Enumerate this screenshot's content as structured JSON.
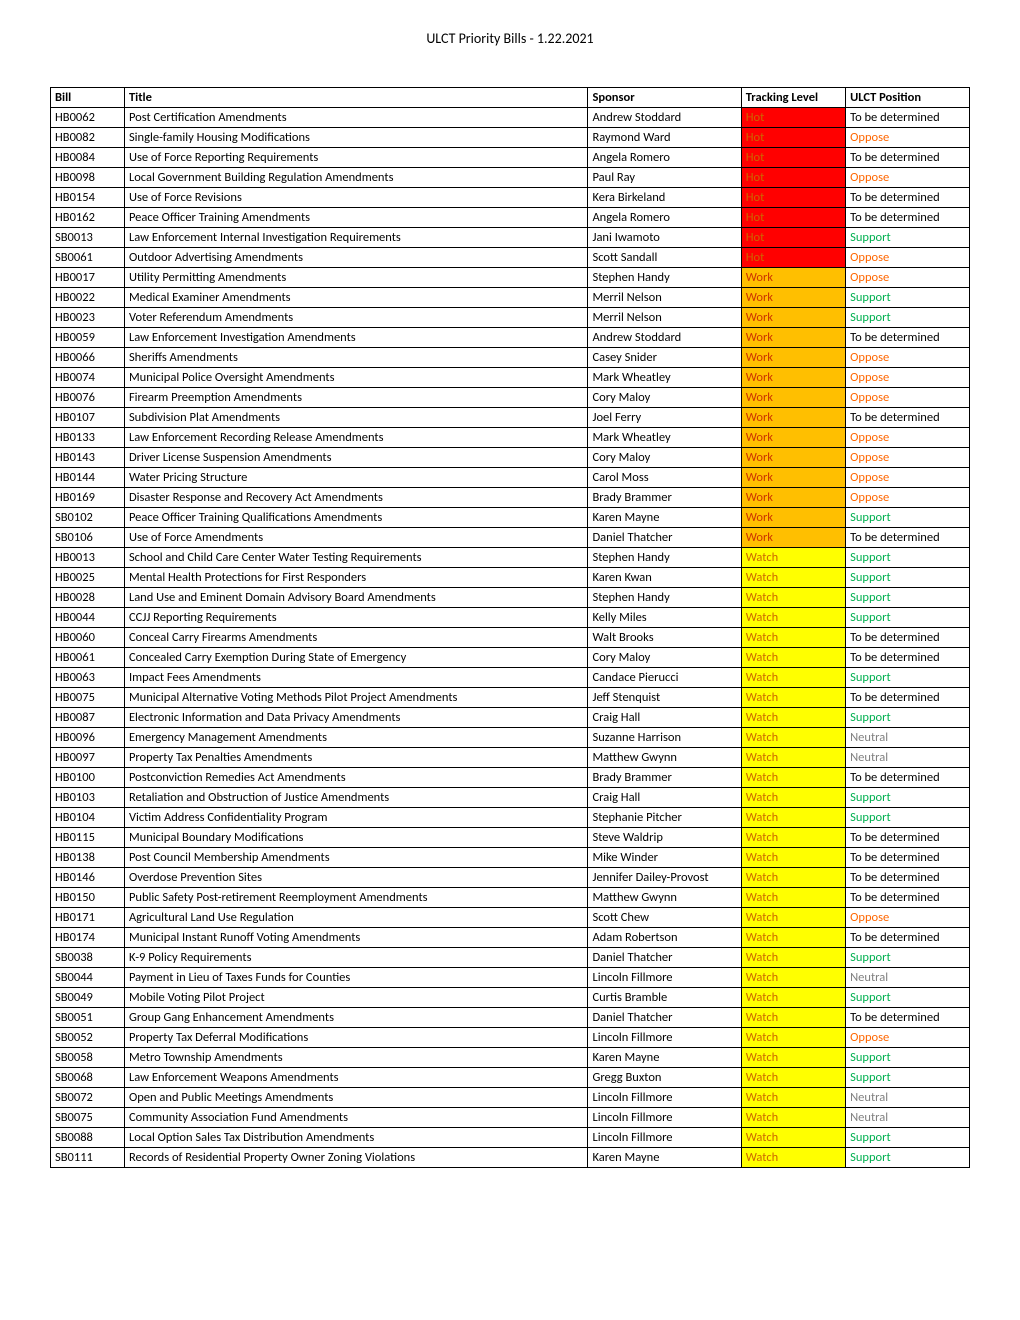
{
  "page_title": "ULCT Priority Bills - 1.22.2021",
  "columns": [
    "Bill",
    "Title",
    "Sponsor",
    "Tracking Level",
    "ULCT Position"
  ],
  "track_levels": {
    "Hot": {
      "bg": "#ff0000",
      "fg": "#cc6600"
    },
    "Work": {
      "bg": "#ffbf00",
      "fg": "#cc3300"
    },
    "Watch": {
      "bg": "#ffff00",
      "fg": "#cc6600"
    }
  },
  "positions": {
    "Support": "#00b050",
    "Oppose": "#ff6600",
    "To be determined": "#000000",
    "Neutral": "#808080"
  },
  "rows": [
    {
      "bill": "HB0062",
      "title": "Post Certification Amendments",
      "sponsor": "Andrew Stoddard",
      "track": "Hot",
      "pos": "To be determined"
    },
    {
      "bill": "HB0082",
      "title": "Single-family Housing Modifications",
      "sponsor": "Raymond Ward",
      "track": "Hot",
      "pos": "Oppose"
    },
    {
      "bill": "HB0084",
      "title": "Use of Force Reporting Requirements",
      "sponsor": "Angela Romero",
      "track": "Hot",
      "pos": "To be determined"
    },
    {
      "bill": "HB0098",
      "title": "Local Government Building Regulation Amendments",
      "sponsor": "Paul Ray",
      "track": "Hot",
      "pos": "Oppose"
    },
    {
      "bill": "HB0154",
      "title": "Use of Force Revisions",
      "sponsor": "Kera Birkeland",
      "track": "Hot",
      "pos": "To be determined"
    },
    {
      "bill": "HB0162",
      "title": "Peace Officer Training Amendments",
      "sponsor": "Angela Romero",
      "track": "Hot",
      "pos": "To be determined"
    },
    {
      "bill": "SB0013",
      "title": "Law Enforcement Internal Investigation Requirements",
      "sponsor": "Jani Iwamoto",
      "track": "Hot",
      "pos": "Support"
    },
    {
      "bill": "SB0061",
      "title": "Outdoor Advertising Amendments",
      "sponsor": "Scott Sandall",
      "track": "Hot",
      "pos": "Oppose"
    },
    {
      "bill": "HB0017",
      "title": "Utility Permitting Amendments",
      "sponsor": "Stephen Handy",
      "track": "Work",
      "pos": "Oppose"
    },
    {
      "bill": "HB0022",
      "title": "Medical Examiner Amendments",
      "sponsor": "Merril Nelson",
      "track": "Work",
      "pos": "Support"
    },
    {
      "bill": "HB0023",
      "title": "Voter Referendum Amendments",
      "sponsor": "Merril Nelson",
      "track": "Work",
      "pos": "Support"
    },
    {
      "bill": "HB0059",
      "title": "Law Enforcement Investigation Amendments",
      "sponsor": "Andrew Stoddard",
      "track": "Work",
      "pos": "To be determined"
    },
    {
      "bill": "HB0066",
      "title": "Sheriffs Amendments",
      "sponsor": "Casey Snider",
      "track": "Work",
      "pos": "Oppose"
    },
    {
      "bill": "HB0074",
      "title": "Municipal Police Oversight Amendments",
      "sponsor": "Mark Wheatley",
      "track": "Work",
      "pos": "Oppose"
    },
    {
      "bill": "HB0076",
      "title": "Firearm Preemption Amendments",
      "sponsor": "Cory Maloy",
      "track": "Work",
      "pos": "Oppose"
    },
    {
      "bill": "HB0107",
      "title": "Subdivision Plat Amendments",
      "sponsor": "Joel Ferry",
      "track": "Work",
      "pos": "To be determined"
    },
    {
      "bill": "HB0133",
      "title": "Law Enforcement Recording Release Amendments",
      "sponsor": "Mark Wheatley",
      "track": "Work",
      "pos": "Oppose"
    },
    {
      "bill": "HB0143",
      "title": "Driver License Suspension Amendments",
      "sponsor": "Cory Maloy",
      "track": "Work",
      "pos": "Oppose"
    },
    {
      "bill": "HB0144",
      "title": "Water Pricing Structure",
      "sponsor": "Carol Moss",
      "track": "Work",
      "pos": "Oppose"
    },
    {
      "bill": "HB0169",
      "title": "Disaster Response and Recovery Act Amendments",
      "sponsor": "Brady Brammer",
      "track": "Work",
      "pos": "Oppose"
    },
    {
      "bill": "SB0102",
      "title": "Peace Officer Training Qualifications Amendments",
      "sponsor": "Karen Mayne",
      "track": "Work",
      "pos": "Support"
    },
    {
      "bill": "SB0106",
      "title": "Use of Force Amendments",
      "sponsor": "Daniel Thatcher",
      "track": "Work",
      "pos": "To be determined"
    },
    {
      "bill": "HB0013",
      "title": "School and Child Care Center Water Testing Requirements",
      "sponsor": "Stephen Handy",
      "track": "Watch",
      "pos": "Support"
    },
    {
      "bill": "HB0025",
      "title": "Mental Health Protections for First Responders",
      "sponsor": "Karen Kwan",
      "track": "Watch",
      "pos": "Support"
    },
    {
      "bill": "HB0028",
      "title": "Land Use and Eminent Domain Advisory Board Amendments",
      "sponsor": "Stephen Handy",
      "track": "Watch",
      "pos": "Support"
    },
    {
      "bill": "HB0044",
      "title": "CCJJ Reporting Requirements",
      "sponsor": "Kelly Miles",
      "track": "Watch",
      "pos": "Support"
    },
    {
      "bill": "HB0060",
      "title": "Conceal Carry Firearms Amendments",
      "sponsor": "Walt Brooks",
      "track": "Watch",
      "pos": "To be determined"
    },
    {
      "bill": "HB0061",
      "title": "Concealed Carry Exemption During State of Emergency",
      "sponsor": "Cory Maloy",
      "track": "Watch",
      "pos": "To be determined"
    },
    {
      "bill": "HB0063",
      "title": "Impact Fees Amendments",
      "sponsor": "Candace Pierucci",
      "track": "Watch",
      "pos": "Support"
    },
    {
      "bill": "HB0075",
      "title": "Municipal Alternative Voting Methods Pilot Project Amendments",
      "sponsor": "Jeff Stenquist",
      "track": "Watch",
      "pos": "To be determined"
    },
    {
      "bill": "HB0087",
      "title": "Electronic Information and Data Privacy Amendments",
      "sponsor": "Craig Hall",
      "track": "Watch",
      "pos": "Support"
    },
    {
      "bill": "HB0096",
      "title": "Emergency Management Amendments",
      "sponsor": "Suzanne Harrison",
      "track": "Watch",
      "pos": "Neutral"
    },
    {
      "bill": "HB0097",
      "title": "Property Tax Penalties Amendments",
      "sponsor": "Matthew Gwynn",
      "track": "Watch",
      "pos": "Neutral"
    },
    {
      "bill": "HB0100",
      "title": "Postconviction Remedies Act Amendments",
      "sponsor": "Brady Brammer",
      "track": "Watch",
      "pos": "To be determined"
    },
    {
      "bill": "HB0103",
      "title": "Retaliation and Obstruction of Justice Amendments",
      "sponsor": "Craig Hall",
      "track": "Watch",
      "pos": "Support"
    },
    {
      "bill": "HB0104",
      "title": "Victim Address Confidentiality Program",
      "sponsor": "Stephanie Pitcher",
      "track": "Watch",
      "pos": "Support"
    },
    {
      "bill": "HB0115",
      "title": "Municipal Boundary Modifications",
      "sponsor": "Steve Waldrip",
      "track": "Watch",
      "pos": "To be determined"
    },
    {
      "bill": "HB0138",
      "title": "Post Council Membership Amendments",
      "sponsor": "Mike Winder",
      "track": "Watch",
      "pos": "To be determined"
    },
    {
      "bill": "HB0146",
      "title": "Overdose Prevention Sites",
      "sponsor": "Jennifer Dailey-Provost",
      "track": "Watch",
      "pos": "To be determined"
    },
    {
      "bill": "HB0150",
      "title": "Public Safety Post-retirement Reemployment Amendments",
      "sponsor": "Matthew Gwynn",
      "track": "Watch",
      "pos": "To be determined"
    },
    {
      "bill": "HB0171",
      "title": "Agricultural Land Use Regulation",
      "sponsor": "Scott Chew",
      "track": "Watch",
      "pos": "Oppose"
    },
    {
      "bill": "HB0174",
      "title": "Municipal Instant Runoff Voting Amendments",
      "sponsor": "Adam Robertson",
      "track": "Watch",
      "pos": "To be determined"
    },
    {
      "bill": "SB0038",
      "title": "K-9 Policy Requirements",
      "sponsor": "Daniel Thatcher",
      "track": "Watch",
      "pos": "Support"
    },
    {
      "bill": "SB0044",
      "title": "Payment in Lieu of Taxes Funds for Counties",
      "sponsor": "Lincoln Fillmore",
      "track": "Watch",
      "pos": "Neutral"
    },
    {
      "bill": "SB0049",
      "title": "Mobile Voting Pilot Project",
      "sponsor": "Curtis Bramble",
      "track": "Watch",
      "pos": "Support"
    },
    {
      "bill": "SB0051",
      "title": "Group Gang Enhancement Amendments",
      "sponsor": "Daniel Thatcher",
      "track": "Watch",
      "pos": "To be determined"
    },
    {
      "bill": "SB0052",
      "title": "Property Tax Deferral Modifications",
      "sponsor": "Lincoln Fillmore",
      "track": "Watch",
      "pos": "Oppose"
    },
    {
      "bill": "SB0058",
      "title": "Metro Township Amendments",
      "sponsor": "Karen Mayne",
      "track": "Watch",
      "pos": "Support"
    },
    {
      "bill": "SB0068",
      "title": "Law Enforcement Weapons Amendments",
      "sponsor": "Gregg Buxton",
      "track": "Watch",
      "pos": "Support"
    },
    {
      "bill": "SB0072",
      "title": "Open and Public Meetings Amendments",
      "sponsor": "Lincoln Fillmore",
      "track": "Watch",
      "pos": "Neutral"
    },
    {
      "bill": "SB0075",
      "title": "Community Association Fund Amendments",
      "sponsor": "Lincoln Fillmore",
      "track": "Watch",
      "pos": "Neutral"
    },
    {
      "bill": "SB0088",
      "title": "Local Option Sales Tax Distribution Amendments",
      "sponsor": "Lincoln Fillmore",
      "track": "Watch",
      "pos": "Support"
    },
    {
      "bill": "SB0111",
      "title": "Records of Residential Property Owner Zoning Violations",
      "sponsor": "Karen Mayne",
      "track": "Watch",
      "pos": "Support"
    }
  ]
}
